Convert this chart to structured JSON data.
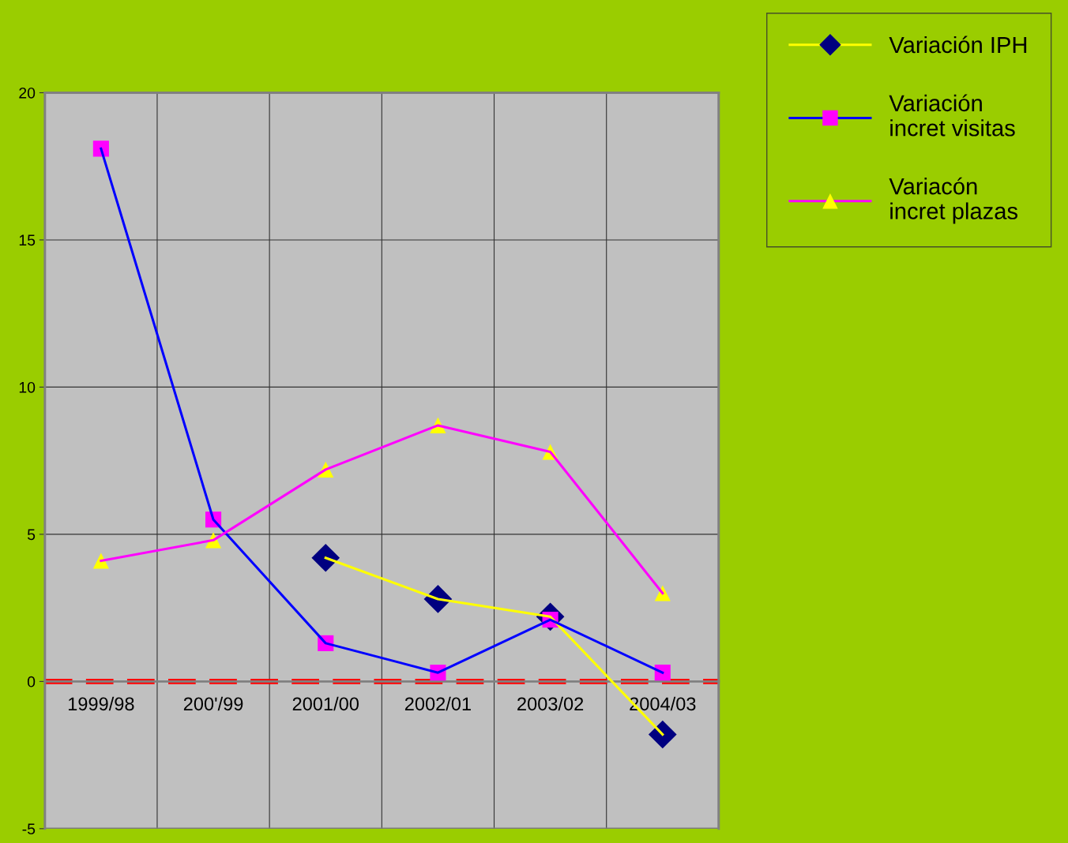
{
  "chart_data": {
    "type": "line",
    "categories": [
      "1999/98",
      "200'/99",
      "2001/00",
      "2002/01",
      "2003/02",
      "2004/03"
    ],
    "series": [
      {
        "name": "Variación IPH",
        "color": "#FFFF00",
        "colors": [
          "#000080",
          "#000080",
          "#000080",
          "#000080",
          "#000080",
          "#000080"
        ],
        "marker": "diamond",
        "values": [
          null,
          null,
          4.2,
          2.8,
          2.2,
          -1.8
        ]
      },
      {
        "name": "Variación incret visitas",
        "color": "#0000FF",
        "colors": [
          "#FF00FF",
          "#FF00FF",
          "#FF00FF",
          "#FF00FF",
          "#FF00FF",
          "#FF00FF"
        ],
        "marker": "square",
        "values": [
          18.1,
          5.5,
          1.3,
          0.3,
          2.1,
          0.3
        ]
      },
      {
        "name": "Variacón incret plazas",
        "color": "#FF00FF",
        "colors": [
          "#FFFF00",
          "#FFFF00",
          "#FFFF00",
          "#FFFF00",
          "#FFFF00",
          "#FFFF00"
        ],
        "marker": "triangle",
        "values": [
          4.1,
          4.8,
          7.2,
          8.7,
          7.8,
          3.0
        ]
      }
    ],
    "ylim": [
      -5,
      20
    ],
    "yticks": [
      -5,
      0,
      5,
      10,
      15,
      20
    ],
    "ref_lines": [
      {
        "axis": "y",
        "value": 0,
        "color": "#FF0000",
        "line_style": "dashed"
      }
    ],
    "grid": true,
    "legend": "top right"
  }
}
